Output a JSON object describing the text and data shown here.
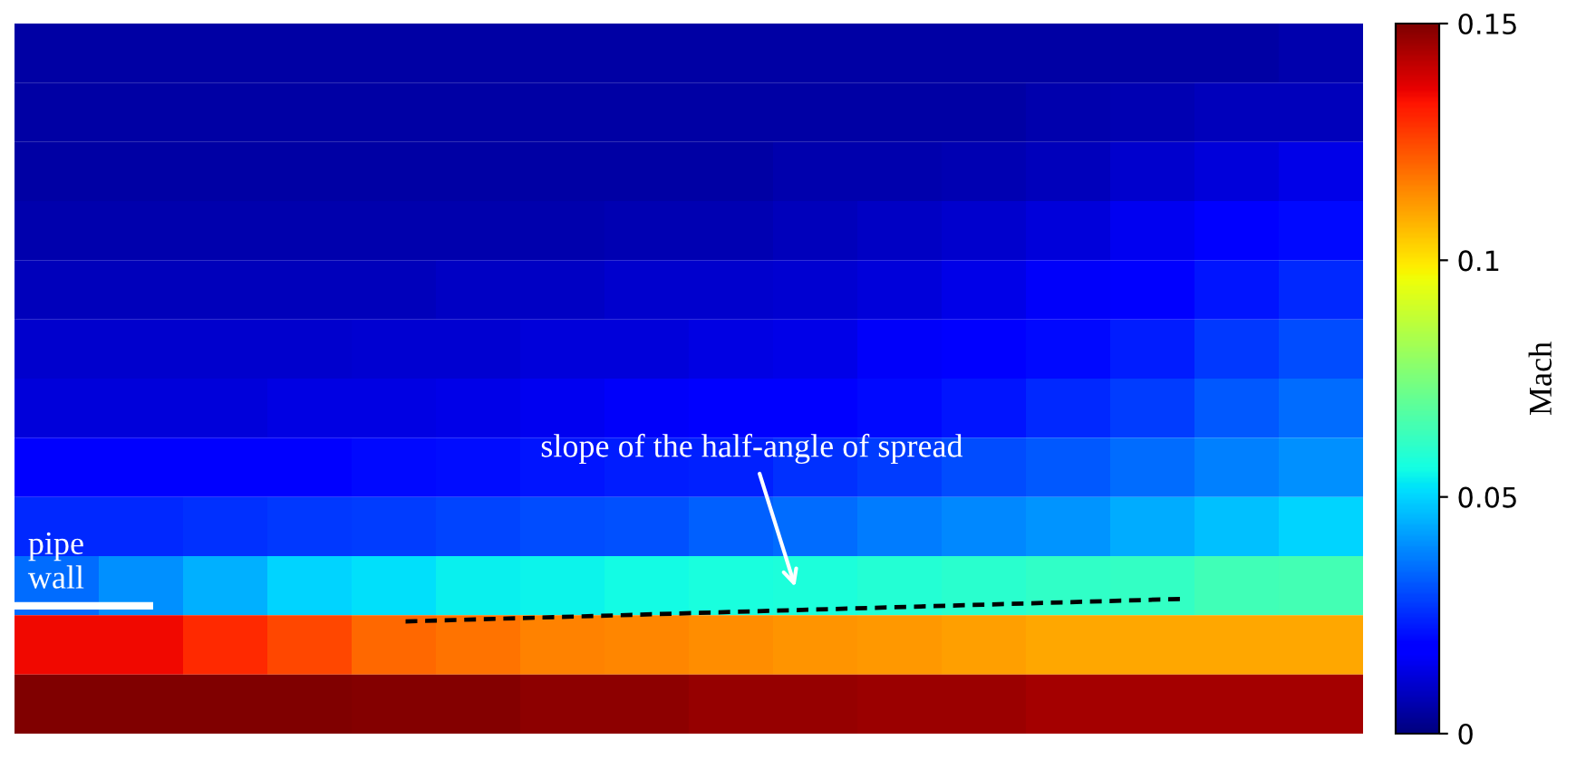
{
  "chart_data": {
    "type": "heatmap",
    "categories": [
      null,
      null,
      null,
      null,
      null,
      null,
      null,
      null,
      null,
      null,
      null,
      null,
      null,
      null,
      null,
      null
    ],
    "y_categories": [
      null,
      null,
      null,
      null,
      null,
      null,
      null,
      null,
      null,
      null,
      null,
      null
    ],
    "cells": [
      [
        0.005,
        0.005,
        0.005,
        0.005,
        0.005,
        0.005,
        0.005,
        0.005,
        0.005,
        0.005,
        0.005,
        0.005,
        0.005,
        0.005,
        0.005,
        0.006
      ],
      [
        0.005,
        0.005,
        0.005,
        0.005,
        0.005,
        0.005,
        0.005,
        0.005,
        0.005,
        0.005,
        0.005,
        0.005,
        0.006,
        0.007,
        0.008,
        0.008
      ],
      [
        0.005,
        0.005,
        0.005,
        0.005,
        0.005,
        0.005,
        0.005,
        0.005,
        0.005,
        0.006,
        0.006,
        0.007,
        0.008,
        0.01,
        0.012,
        0.014
      ],
      [
        0.006,
        0.006,
        0.006,
        0.006,
        0.006,
        0.006,
        0.006,
        0.007,
        0.007,
        0.008,
        0.009,
        0.01,
        0.012,
        0.015,
        0.018,
        0.02
      ],
      [
        0.008,
        0.008,
        0.008,
        0.008,
        0.008,
        0.009,
        0.009,
        0.01,
        0.01,
        0.011,
        0.012,
        0.014,
        0.016,
        0.019,
        0.022,
        0.025
      ],
      [
        0.01,
        0.01,
        0.01,
        0.01,
        0.011,
        0.011,
        0.012,
        0.012,
        0.013,
        0.014,
        0.016,
        0.018,
        0.02,
        0.023,
        0.027,
        0.03
      ],
      [
        0.012,
        0.012,
        0.012,
        0.013,
        0.013,
        0.014,
        0.015,
        0.016,
        0.017,
        0.018,
        0.02,
        0.022,
        0.025,
        0.028,
        0.032,
        0.035
      ],
      [
        0.018,
        0.018,
        0.018,
        0.019,
        0.02,
        0.021,
        0.022,
        0.023,
        0.024,
        0.026,
        0.028,
        0.03,
        0.032,
        0.035,
        0.038,
        0.04
      ],
      [
        0.025,
        0.025,
        0.026,
        0.027,
        0.028,
        0.029,
        0.03,
        0.031,
        0.033,
        0.035,
        0.037,
        0.039,
        0.041,
        0.044,
        0.047,
        0.05
      ],
      [
        0.035,
        0.04,
        0.045,
        0.05,
        0.052,
        0.054,
        0.055,
        0.056,
        0.057,
        0.058,
        0.059,
        0.06,
        0.061,
        0.062,
        0.064,
        0.065
      ],
      [
        0.135,
        0.135,
        0.13,
        0.125,
        0.12,
        0.118,
        0.116,
        0.115,
        0.114,
        0.113,
        0.112,
        0.111,
        0.11,
        0.11,
        0.11,
        0.11
      ],
      [
        0.15,
        0.15,
        0.15,
        0.15,
        0.149,
        0.149,
        0.148,
        0.148,
        0.147,
        0.147,
        0.146,
        0.146,
        0.145,
        0.145,
        0.145,
        0.145
      ]
    ],
    "clim": [
      0,
      0.15
    ],
    "cticks": [
      0,
      0.05,
      0.1,
      0.15
    ],
    "clabel": "Mach",
    "annotations": [
      "pipe\nwall",
      "slope of the half-angle of spread"
    ],
    "tick_labels": false
  }
}
